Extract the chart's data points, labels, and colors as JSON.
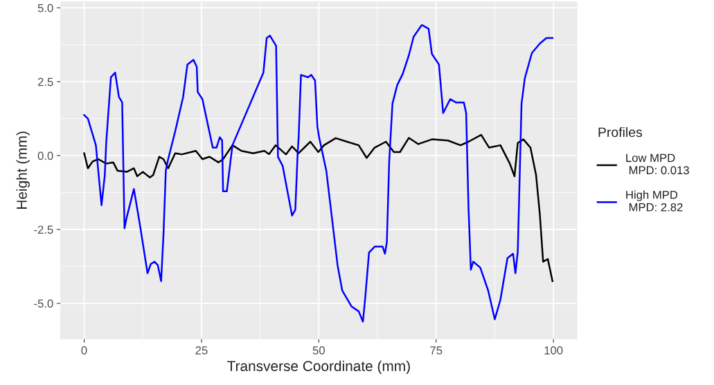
{
  "chart_data": {
    "type": "line",
    "xlabel": "Transverse Coordinate (mm)",
    "ylabel": "Height (mm)",
    "legend_title": "Profiles",
    "xlim": [
      -5,
      105
    ],
    "ylim": [
      -6.2,
      5.2
    ],
    "xticks": [
      0,
      25,
      50,
      75,
      100
    ],
    "yticks": [
      {
        "value": -5,
        "label": "-5.0"
      },
      {
        "value": -2.5,
        "label": "-2.5"
      },
      {
        "value": 0,
        "label": "0.0"
      },
      {
        "value": 2.5,
        "label": "2.5"
      },
      {
        "value": 5,
        "label": "5.0"
      }
    ],
    "grid": true,
    "legend": "right",
    "line_style": "solid",
    "marker": "none",
    "series": [
      {
        "name": "Low MPD\n MPD: 0.013",
        "color": "#000000",
        "x": [
          0,
          0.8,
          1.8,
          3.0,
          4.7,
          6.2,
          7.1,
          9.1,
          10.6,
          11.3,
          12.5,
          14.0,
          14.7,
          16.0,
          16.9,
          17.9,
          19.4,
          20.8,
          23.8,
          25.2,
          26.7,
          28.6,
          29.6,
          31.6,
          33.5,
          36.0,
          38.4,
          39.4,
          40.8,
          43.0,
          44.3,
          45.7,
          48.2,
          49.9,
          51.1,
          53.6,
          56.0,
          58.5,
          60.2,
          61.9,
          64.3,
          66.0,
          67.3,
          69.2,
          71.2,
          74.1,
          77.5,
          80.2,
          81.9,
          84.6,
          86.3,
          88.7,
          90.7,
          91.7,
          92.4,
          93.6,
          95.1,
          96.3,
          97.1,
          97.8,
          98.8,
          99.8
        ],
        "values": [
          0.08,
          -0.43,
          -0.2,
          -0.12,
          -0.27,
          -0.23,
          -0.51,
          -0.55,
          -0.43,
          -0.7,
          -0.55,
          -0.74,
          -0.66,
          -0.04,
          -0.12,
          -0.43,
          0.08,
          0.04,
          0.16,
          -0.12,
          -0.04,
          -0.23,
          -0.12,
          0.35,
          0.16,
          0.08,
          0.16,
          0.05,
          0.35,
          0.04,
          0.31,
          0.08,
          0.47,
          0.12,
          0.35,
          0.59,
          0.47,
          0.35,
          -0.08,
          0.27,
          0.47,
          0.12,
          0.12,
          0.6,
          0.39,
          0.55,
          0.51,
          0.35,
          0.47,
          0.7,
          0.27,
          0.35,
          -0.27,
          -0.7,
          0.43,
          0.55,
          0.27,
          -0.66,
          -1.99,
          -3.59,
          -3.5,
          -4.25
        ]
      },
      {
        "name": "High MPD\n MPD: 2.82",
        "color": "#0000ff",
        "x": [
          0,
          0.8,
          2.5,
          3.7,
          4.4,
          4.7,
          5.7,
          6.6,
          7.4,
          8.1,
          8.6,
          9.1,
          10.6,
          12.0,
          13.5,
          14.2,
          15.0,
          15.7,
          16.4,
          16.9,
          17.4,
          17.9,
          19.4,
          21.1,
          22.0,
          23.3,
          24.0,
          24.2,
          25.2,
          27.4,
          28.2,
          28.9,
          29.4,
          29.6,
          30.4,
          31.6,
          38.2,
          38.9,
          39.6,
          40.9,
          41.3,
          42.3,
          44.3,
          45.0,
          45.5,
          45.7,
          46.2,
          47.7,
          48.4,
          49.2,
          49.7,
          50.1,
          51.6,
          54.0,
          55.0,
          57.0,
          58.5,
          59.4,
          59.9,
          60.7,
          61.9,
          63.6,
          64.1,
          64.5,
          65.0,
          65.7,
          66.7,
          67.9,
          69.2,
          70.2,
          71.9,
          72.1,
          73.4,
          74.1,
          75.6,
          76.5,
          78.0,
          79.2,
          80.9,
          81.4,
          81.9,
          82.4,
          82.9,
          84.4,
          86.1,
          87.5,
          88.7,
          90.2,
          91.4,
          91.9,
          92.4,
          93.2,
          93.9,
          95.4,
          97.1,
          98.5,
          99.8
        ],
        "values": [
          1.37,
          1.25,
          0.35,
          -1.68,
          -0.66,
          0.43,
          2.65,
          2.81,
          1.99,
          1.8,
          -2.46,
          -2.07,
          -1.13,
          -2.46,
          -3.98,
          -3.67,
          -3.59,
          -3.71,
          -4.25,
          -2.69,
          -0.51,
          -0.12,
          0.82,
          1.99,
          3.08,
          3.24,
          3.0,
          2.15,
          1.91,
          0.27,
          0.27,
          0.62,
          0.51,
          -1.21,
          -1.21,
          0.35,
          2.81,
          3.98,
          4.06,
          3.71,
          -0.04,
          -0.35,
          -2.03,
          -1.83,
          0.12,
          0.59,
          2.73,
          2.65,
          2.73,
          2.54,
          0.98,
          0.59,
          -0.51,
          -3.71,
          -4.57,
          -5.11,
          -5.27,
          -5.62,
          -4.8,
          -3.28,
          -3.08,
          -3.08,
          -3.32,
          -2.93,
          -0.2,
          1.76,
          2.38,
          2.77,
          3.4,
          4.02,
          4.41,
          4.41,
          4.29,
          3.44,
          3.08,
          1.44,
          1.91,
          1.8,
          1.8,
          1.44,
          -1.76,
          -3.86,
          -3.59,
          -3.79,
          -4.57,
          -5.54,
          -4.88,
          -3.47,
          -3.32,
          -3.98,
          -3.24,
          1.76,
          2.62,
          3.47,
          3.79,
          3.98,
          3.98
        ]
      }
    ]
  }
}
